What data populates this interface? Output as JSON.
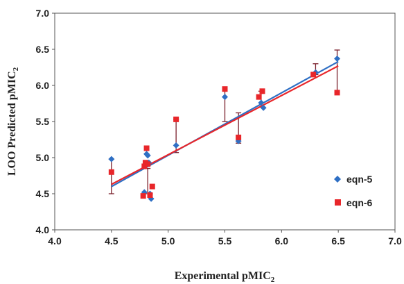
{
  "chart_data": {
    "type": "scatter",
    "xlabel": "Experimental pMIC",
    "xlabel_sub": "2",
    "ylabel": "LOO Predicted  pMIC",
    "ylabel_sub": "2",
    "xlim": [
      4.0,
      7.0
    ],
    "ylim": [
      4.0,
      7.0
    ],
    "x_ticks": [
      "4.0",
      "4.5",
      "5.0",
      "5.5",
      "6.0",
      "6.5",
      "7.0"
    ],
    "y_ticks": [
      "4.0",
      "4.5",
      "5.0",
      "5.5",
      "6.0",
      "6.5",
      "7.0"
    ],
    "grid": false,
    "legend_position": "lower-right",
    "series": [
      {
        "name": "eqn-5",
        "marker": "diamond",
        "color": "#2e6fc4",
        "trend_color": "#2e6fc4",
        "points": [
          {
            "x": 4.5,
            "y": 4.98
          },
          {
            "x": 4.79,
            "y": 4.52
          },
          {
            "x": 4.8,
            "y": 4.88
          },
          {
            "x": 4.81,
            "y": 5.05
          },
          {
            "x": 4.82,
            "y": 5.03
          },
          {
            "x": 4.83,
            "y": 4.93
          },
          {
            "x": 4.84,
            "y": 4.5
          },
          {
            "x": 4.85,
            "y": 4.43
          },
          {
            "x": 5.07,
            "y": 5.17
          },
          {
            "x": 5.5,
            "y": 5.84
          },
          {
            "x": 5.62,
            "y": 5.23
          },
          {
            "x": 5.82,
            "y": 5.76
          },
          {
            "x": 5.84,
            "y": 5.69
          },
          {
            "x": 6.3,
            "y": 6.18
          },
          {
            "x": 6.49,
            "y": 6.37
          }
        ],
        "trend": {
          "x": [
            4.5,
            6.5
          ],
          "y": [
            4.6,
            6.33
          ]
        }
      },
      {
        "name": "eqn-6",
        "marker": "square",
        "color": "#e8262a",
        "trend_color": "#e8262a",
        "points": [
          {
            "x": 4.5,
            "y": 4.8
          },
          {
            "x": 4.78,
            "y": 4.47
          },
          {
            "x": 4.79,
            "y": 4.88
          },
          {
            "x": 4.8,
            "y": 4.93
          },
          {
            "x": 4.81,
            "y": 5.13
          },
          {
            "x": 4.82,
            "y": 4.91
          },
          {
            "x": 4.84,
            "y": 4.48
          },
          {
            "x": 4.86,
            "y": 4.6
          },
          {
            "x": 5.07,
            "y": 5.53
          },
          {
            "x": 5.5,
            "y": 5.95
          },
          {
            "x": 5.62,
            "y": 5.28
          },
          {
            "x": 5.8,
            "y": 5.84
          },
          {
            "x": 5.83,
            "y": 5.92
          },
          {
            "x": 6.28,
            "y": 6.15
          },
          {
            "x": 6.49,
            "y": 5.9
          }
        ],
        "trend": {
          "x": [
            4.5,
            6.5
          ],
          "y": [
            4.63,
            6.27
          ]
        }
      }
    ],
    "error_bars": {
      "color": "#7a1f2b",
      "items": [
        {
          "x": 4.5,
          "y_low": 4.5,
          "y_high": 4.98
        },
        {
          "x": 4.82,
          "y_low": 4.5,
          "y_high": 4.85
        },
        {
          "x": 5.07,
          "y_low": 5.07,
          "y_high": 5.53
        },
        {
          "x": 5.5,
          "y_low": 5.5,
          "y_high": 5.95
        },
        {
          "x": 5.62,
          "y_low": 5.2,
          "y_high": 5.62
        },
        {
          "x": 5.82,
          "y_low": 5.7,
          "y_high": 5.92
        },
        {
          "x": 6.3,
          "y_low": 6.15,
          "y_high": 6.3
        },
        {
          "x": 6.49,
          "y_low": 5.9,
          "y_high": 6.49
        }
      ]
    }
  }
}
